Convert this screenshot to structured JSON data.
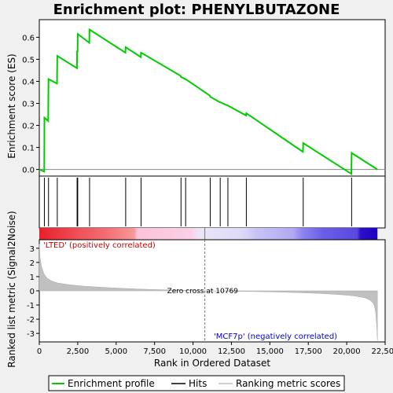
{
  "chart_data": {
    "type": "line",
    "title": "Enrichment plot: PHENYLBUTAZONE",
    "xlabel": "Rank in Ordered Dataset",
    "xlim": [
      0,
      22500
    ],
    "xticks": [
      0,
      2500,
      5000,
      7500,
      10000,
      12500,
      15000,
      17500,
      20000,
      22500
    ],
    "xtick_labels": [
      "0",
      "2,500",
      "5,000",
      "7,500",
      "10,000",
      "12,500",
      "15,000",
      "17,500",
      "20,000",
      "22,500"
    ],
    "grid": false,
    "legend_position": "bottom",
    "panels": {
      "enrichment": {
        "ylabel": "Enrichment score (ES)",
        "ylim": [
          -0.03,
          0.68
        ],
        "yticks": [
          0.0,
          0.1,
          0.2,
          0.3,
          0.4,
          0.5,
          0.6
        ],
        "ytick_labels": [
          "0.0",
          "0.1",
          "0.2",
          "0.3",
          "0.4",
          "0.5",
          "0.6"
        ],
        "series_name": "Enrichment profile",
        "color": "#00cc00",
        "points": [
          [
            0,
            0.0
          ],
          [
            320,
            -0.01
          ],
          [
            330,
            0.235
          ],
          [
            580,
            0.22
          ],
          [
            600,
            0.41
          ],
          [
            1150,
            0.39
          ],
          [
            1170,
            0.515
          ],
          [
            2450,
            0.46
          ],
          [
            2460,
            0.535
          ],
          [
            2490,
            0.535
          ],
          [
            2500,
            0.615
          ],
          [
            3250,
            0.575
          ],
          [
            3270,
            0.635
          ],
          [
            5600,
            0.53
          ],
          [
            5620,
            0.555
          ],
          [
            6600,
            0.51
          ],
          [
            6620,
            0.53
          ],
          [
            9200,
            0.425
          ],
          [
            9220,
            0.42
          ],
          [
            9500,
            0.41
          ],
          [
            9520,
            0.41
          ],
          [
            11100,
            0.335
          ],
          [
            11120,
            0.33
          ],
          [
            11750,
            0.305
          ],
          [
            11770,
            0.305
          ],
          [
            12250,
            0.29
          ],
          [
            12270,
            0.29
          ],
          [
            13450,
            0.245
          ],
          [
            13470,
            0.255
          ],
          [
            17150,
            0.08
          ],
          [
            17170,
            0.12
          ],
          [
            20300,
            -0.02
          ],
          [
            20320,
            0.075
          ],
          [
            22000,
            0.0
          ]
        ]
      },
      "hits": {
        "series_name": "Hits",
        "color": "#000000",
        "ranks": [
          330,
          600,
          1170,
          2460,
          2500,
          3270,
          5620,
          6620,
          9220,
          9520,
          11120,
          11770,
          12270,
          13470,
          17170,
          20320
        ]
      },
      "ranking_metric": {
        "ylabel": "Ranked list metric (Signal2Noise)",
        "ylim": [
          -3.6,
          3.6
        ],
        "yticks": [
          -3,
          -2,
          -1,
          0,
          1,
          2,
          3
        ],
        "ytick_labels": [
          "-3",
          "-2",
          "-1",
          "0",
          "1",
          "2",
          "3"
        ],
        "series_name": "Ranking metric scores",
        "color": "#c0c0c0",
        "points": [
          [
            0,
            3.3
          ],
          [
            50,
            2.3
          ],
          [
            150,
            1.7
          ],
          [
            300,
            1.2
          ],
          [
            500,
            0.9
          ],
          [
            800,
            0.7
          ],
          [
            1200,
            0.55
          ],
          [
            2000,
            0.42
          ],
          [
            3000,
            0.32
          ],
          [
            4500,
            0.22
          ],
          [
            6500,
            0.12
          ],
          [
            8500,
            0.06
          ],
          [
            10000,
            0.02
          ],
          [
            10769,
            0.0
          ],
          [
            12000,
            -0.02
          ],
          [
            14000,
            -0.05
          ],
          [
            16000,
            -0.1
          ],
          [
            18000,
            -0.17
          ],
          [
            19500,
            -0.26
          ],
          [
            20500,
            -0.36
          ],
          [
            21200,
            -0.5
          ],
          [
            21500,
            -0.65
          ],
          [
            21700,
            -0.85
          ],
          [
            21800,
            -1.05
          ],
          [
            21880,
            -1.5
          ],
          [
            21950,
            -2.4
          ],
          [
            22000,
            -3.5
          ]
        ],
        "zero_cross_rank": 10769,
        "zero_cross_label": "Zero cross at 10769",
        "positive_label": "'LTED' (positively correlated)",
        "negative_label": "'MCF7p' (negatively correlated)",
        "positive_label_color": "#cc0000",
        "negative_label_color": "#0000cc"
      }
    },
    "legend": [
      {
        "name": "Enrichment profile",
        "color": "#00cc00"
      },
      {
        "name": "Hits",
        "color": "#000000"
      },
      {
        "name": "Ranking metric scores",
        "color": "#c0c0c0"
      }
    ]
  }
}
